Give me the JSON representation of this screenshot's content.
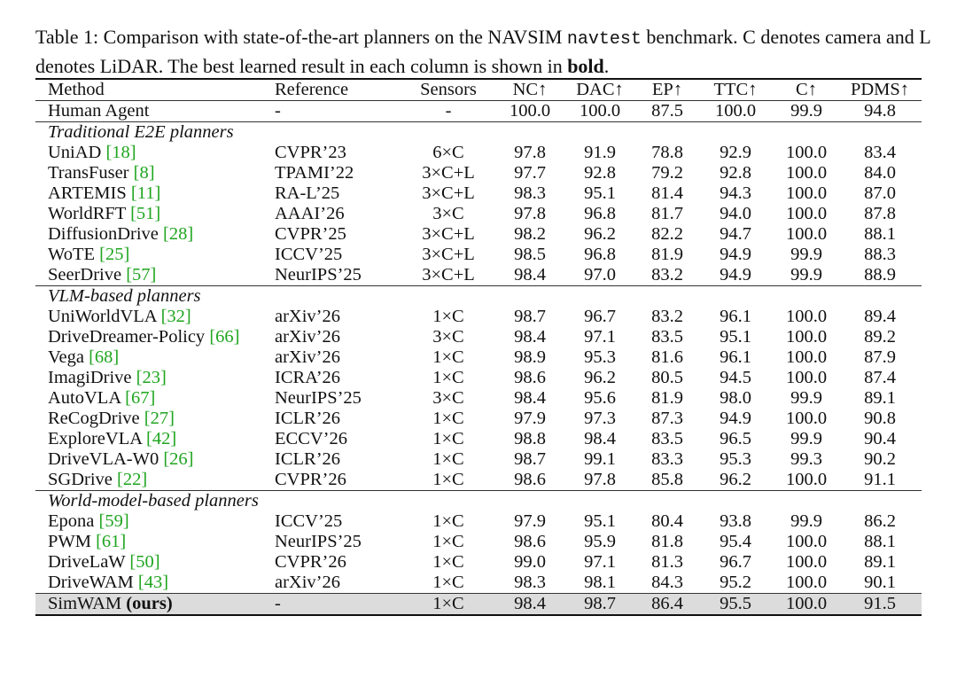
{
  "caption": {
    "part1": "Table 1: Comparison with state-of-the-art planners on the NAVSIM ",
    "mono": "navtest",
    "part2": " benchmark. C denotes camera and L denotes LiDAR. The best learned result in each column is shown in ",
    "bold": "bold",
    "part3": "."
  },
  "columns": [
    "Method",
    "Reference",
    "Sensors",
    "NC↑",
    "DAC↑",
    "EP↑",
    "TTC↑",
    "C↑",
    "PDMS↑"
  ],
  "human": {
    "method": "Human Agent",
    "reference": "-",
    "sensors": "-",
    "values": [
      "100.0",
      "100.0",
      "87.5",
      "100.0",
      "99.9",
      "94.8"
    ]
  },
  "sections": [
    {
      "title": "Traditional E2E planners",
      "rows": [
        {
          "method": "UniAD",
          "cite": "[18]",
          "reference": "CVPR’23",
          "sensors": "6×C",
          "values": [
            "97.8",
            "91.9",
            "78.8",
            "92.9",
            "100.0",
            "83.4"
          ]
        },
        {
          "method": "TransFuser",
          "cite": "[8]",
          "reference": "TPAMI’22",
          "sensors": "3×C+L",
          "values": [
            "97.7",
            "92.8",
            "79.2",
            "92.8",
            "100.0",
            "84.0"
          ]
        },
        {
          "method": "ARTEMIS",
          "cite": "[11]",
          "reference": "RA-L’25",
          "sensors": "3×C+L",
          "values": [
            "98.3",
            "95.1",
            "81.4",
            "94.3",
            "100.0",
            "87.0"
          ]
        },
        {
          "method": "WorldRFT",
          "cite": "[51]",
          "reference": "AAAI’26",
          "sensors": "3×C",
          "values": [
            "97.8",
            "96.8",
            "81.7",
            "94.0",
            "100.0",
            "87.8"
          ]
        },
        {
          "method": "DiffusionDrive",
          "cite": "[28]",
          "reference": "CVPR’25",
          "sensors": "3×C+L",
          "values": [
            "98.2",
            "96.2",
            "82.2",
            "94.7",
            "100.0",
            "88.1"
          ]
        },
        {
          "method": "WoTE",
          "cite": "[25]",
          "reference": "ICCV’25",
          "sensors": "3×C+L",
          "values": [
            "98.5",
            "96.8",
            "81.9",
            "94.9",
            "99.9",
            "88.3"
          ]
        },
        {
          "method": "SeerDrive",
          "cite": "[57]",
          "reference": "NeurIPS’25",
          "sensors": "3×C+L",
          "values": [
            "98.4",
            "97.0",
            "83.2",
            "94.9",
            "99.9",
            "88.9"
          ]
        }
      ]
    },
    {
      "title": "VLM-based planners",
      "rows": [
        {
          "method": "UniWorldVLA",
          "cite": "[32]",
          "reference": "arXiv’26",
          "sensors": "1×C",
          "values": [
            "98.7",
            "96.7",
            "83.2",
            "96.1",
            "100.0",
            "89.4"
          ]
        },
        {
          "method": "DriveDreamer-Policy",
          "cite": "[66]",
          "reference": "arXiv’26",
          "sensors": "3×C",
          "values": [
            "98.4",
            "97.1",
            "83.5",
            "95.1",
            "100.0",
            "89.2"
          ]
        },
        {
          "method": "Vega",
          "cite": "[68]",
          "reference": "arXiv’26",
          "sensors": "1×C",
          "values": [
            "98.9",
            "95.3",
            "81.6",
            "96.1",
            "100.0",
            "87.9"
          ]
        },
        {
          "method": "ImagiDrive",
          "cite": "[23]",
          "reference": "ICRA’26",
          "sensors": "1×C",
          "values": [
            "98.6",
            "96.2",
            "80.5",
            "94.5",
            "100.0",
            "87.4"
          ]
        },
        {
          "method": "AutoVLA",
          "cite": "[67]",
          "reference": "NeurIPS’25",
          "sensors": "3×C",
          "values": [
            "98.4",
            "95.6",
            "81.9",
            "98.0",
            "99.9",
            "89.1"
          ],
          "bold": [
            3
          ]
        },
        {
          "method": "ReCogDrive",
          "cite": "[27]",
          "reference": "ICLR’26",
          "sensors": "1×C",
          "values": [
            "97.9",
            "97.3",
            "87.3",
            "94.9",
            "100.0",
            "90.8"
          ],
          "bold": [
            2
          ]
        },
        {
          "method": "ExploreVLA",
          "cite": "[42]",
          "reference": "ECCV’26",
          "sensors": "1×C",
          "values": [
            "98.8",
            "98.4",
            "83.5",
            "96.5",
            "99.9",
            "90.4"
          ]
        },
        {
          "method": "DriveVLA-W0",
          "cite": "[26]",
          "reference": "ICLR’26",
          "sensors": "1×C",
          "values": [
            "98.7",
            "99.1",
            "83.3",
            "95.3",
            "99.3",
            "90.2"
          ],
          "bold": [
            1
          ]
        },
        {
          "method": "SGDrive",
          "cite": "[22]",
          "reference": "CVPR’26",
          "sensors": "1×C",
          "values": [
            "98.6",
            "97.8",
            "85.8",
            "96.2",
            "100.0",
            "91.1"
          ]
        }
      ]
    },
    {
      "title": "World-model-based planners",
      "rows": [
        {
          "method": "Epona",
          "cite": "[59]",
          "reference": "ICCV’25",
          "sensors": "1×C",
          "values": [
            "97.9",
            "95.1",
            "80.4",
            "93.8",
            "99.9",
            "86.2"
          ]
        },
        {
          "method": "PWM",
          "cite": "[61]",
          "reference": "NeurIPS’25",
          "sensors": "1×C",
          "values": [
            "98.6",
            "95.9",
            "81.8",
            "95.4",
            "100.0",
            "88.1"
          ]
        },
        {
          "method": "DriveLaW",
          "cite": "[50]",
          "reference": "CVPR’26",
          "sensors": "1×C",
          "values": [
            "99.0",
            "97.1",
            "81.3",
            "96.7",
            "100.0",
            "89.1"
          ],
          "bold": [
            0
          ]
        },
        {
          "method": "DriveWAM",
          "cite": "[43]",
          "reference": "arXiv’26",
          "sensors": "1×C",
          "values": [
            "98.3",
            "98.1",
            "84.3",
            "95.2",
            "100.0",
            "90.1"
          ]
        }
      ]
    }
  ],
  "ours": {
    "method": "SimWAM",
    "suffix": "(ours)",
    "reference": "-",
    "sensors": "1×C",
    "values": [
      "98.4",
      "98.7",
      "86.4",
      "95.5",
      "100.0",
      "91.5"
    ],
    "bold": [
      5
    ]
  }
}
